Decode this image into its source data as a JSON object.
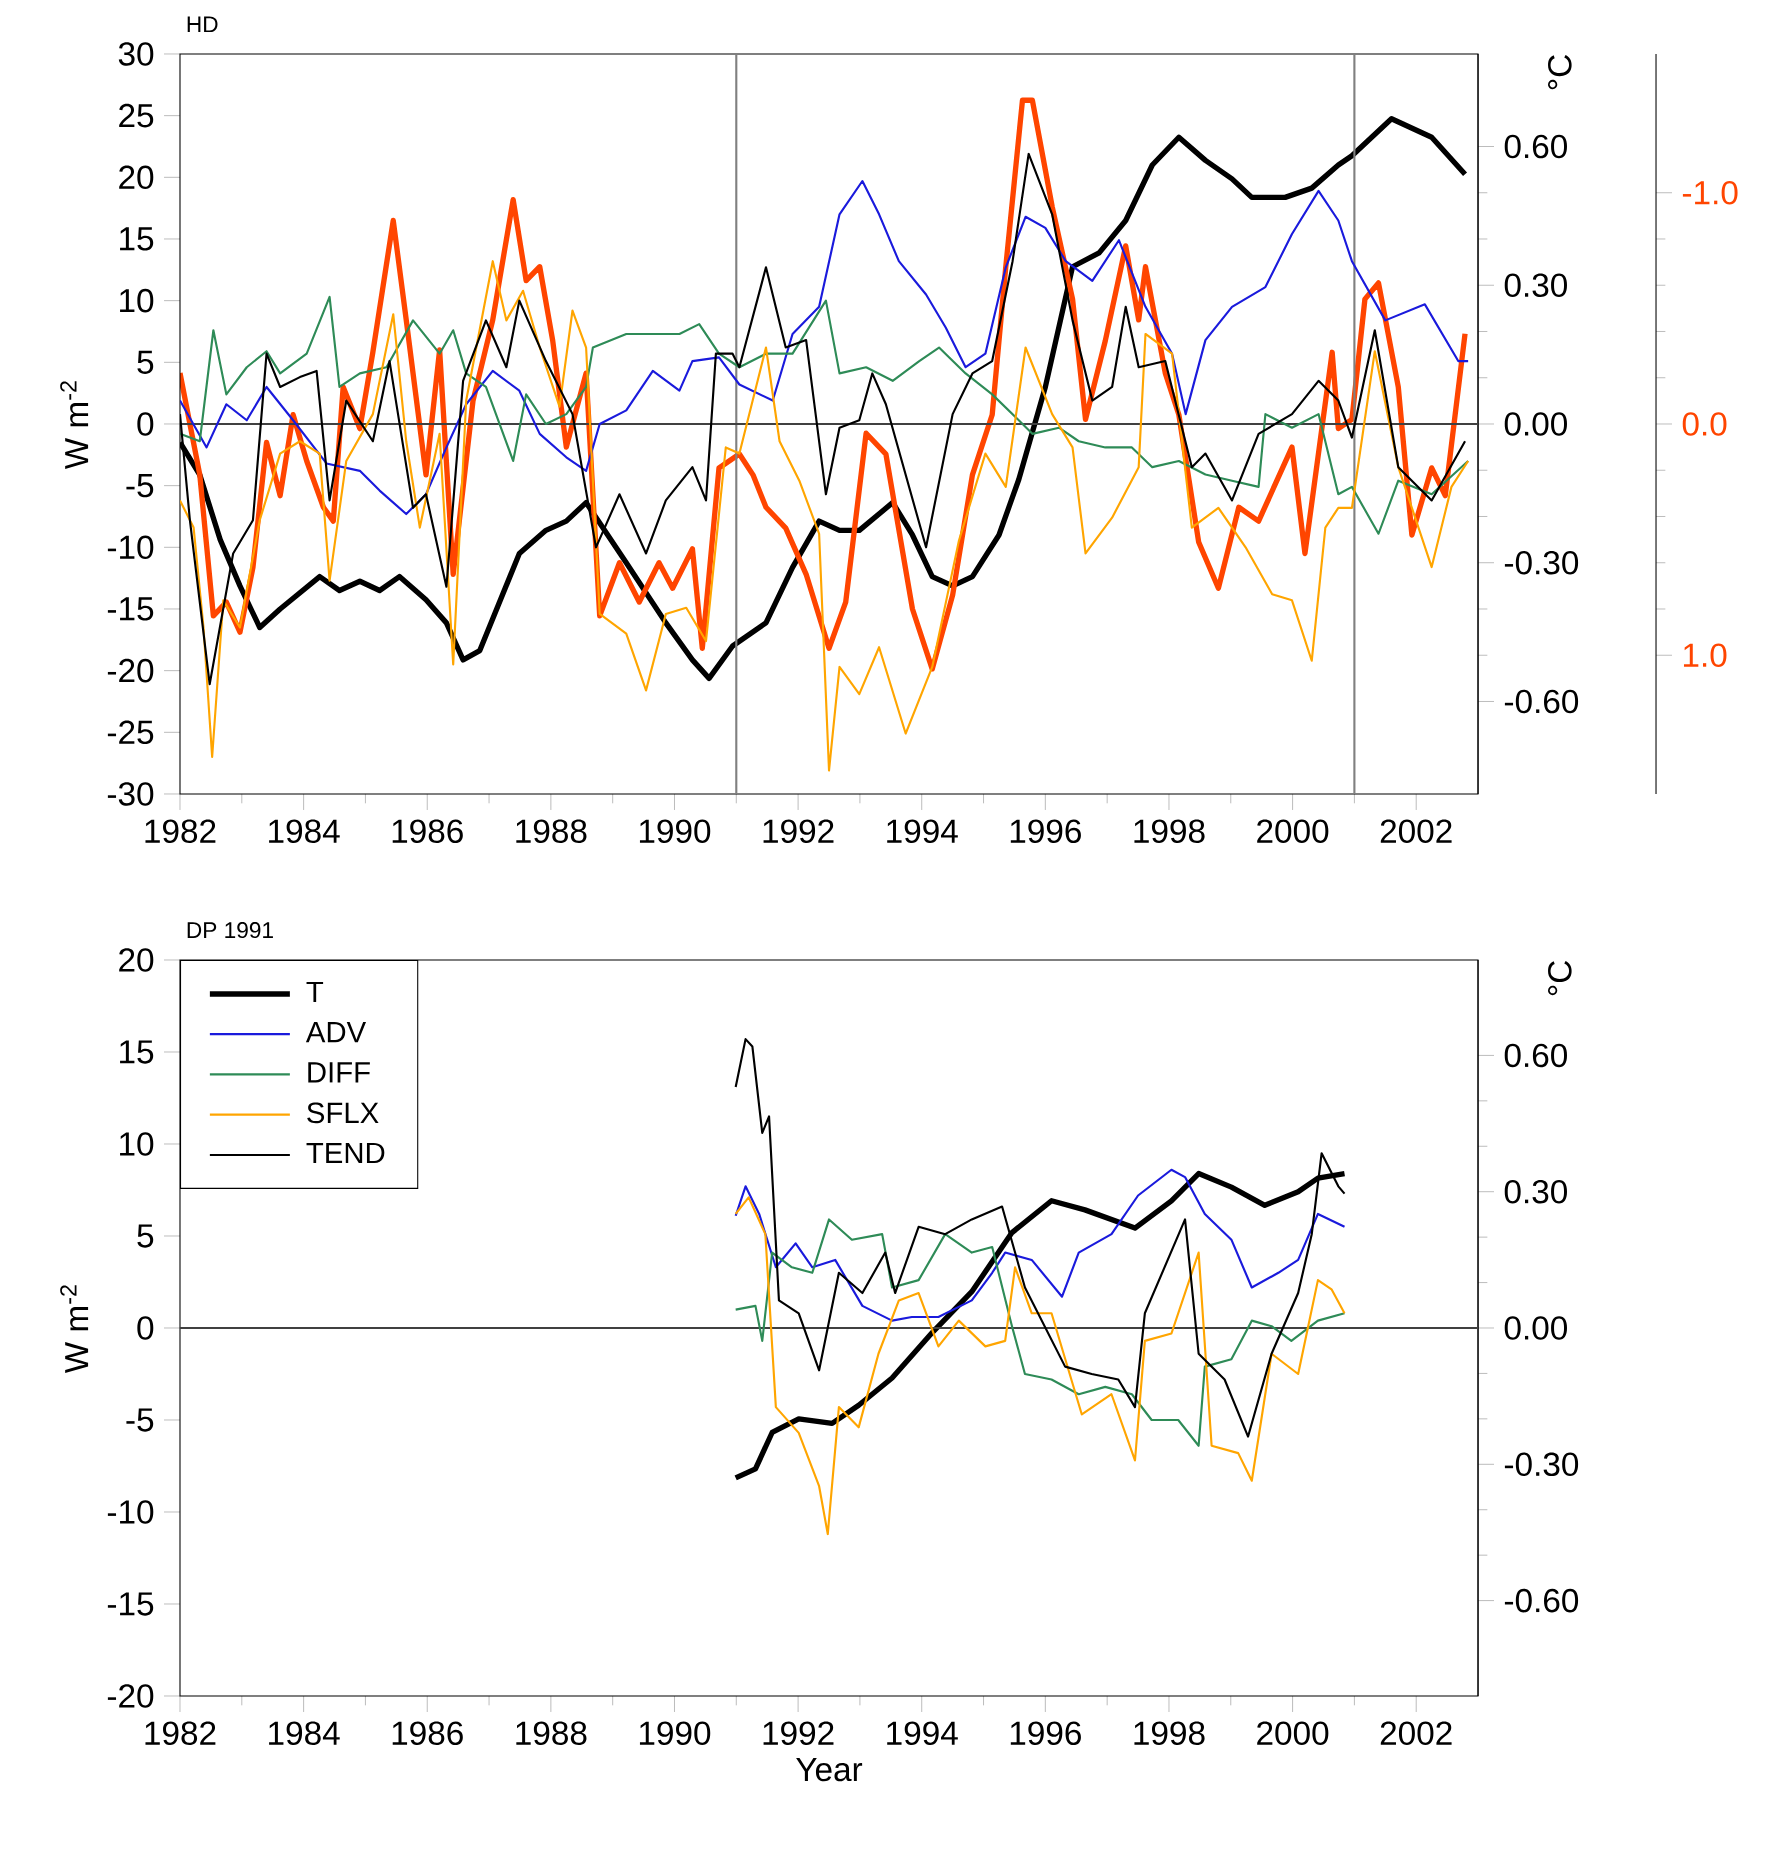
{
  "chart_data": [
    {
      "type": "line",
      "title": "HD",
      "ylabel": "W m$^{-2}$",
      "y2label": "°C",
      "legend": false,
      "xlim": [
        1982,
        2003
      ],
      "xticks": [
        1982,
        1984,
        1986,
        1988,
        1990,
        1992,
        1994,
        1996,
        1998,
        2000,
        2002
      ],
      "ylim": [
        -30,
        30
      ],
      "yticks": [
        -30,
        -25,
        -20,
        -15,
        -10,
        -5,
        0,
        5,
        10,
        15,
        20,
        25,
        30
      ],
      "y2lim": [
        -0.8,
        0.8
      ],
      "y2ticks": [
        {
          "value": -0.6,
          "label": "-0.60"
        },
        {
          "value": -0.3,
          "label": "-0.30"
        },
        {
          "value": 0,
          "label": "0.00"
        },
        {
          "value": 0.3,
          "label": "0.30"
        },
        {
          "value": 0.6,
          "label": "0.60"
        }
      ],
      "y3lim": [
        1.6,
        -1.6
      ],
      "y3ticks": [
        {
          "value": -1,
          "label": "-1.0"
        },
        {
          "value": 0,
          "label": "0.0"
        },
        {
          "value": 1,
          "label": "1.0"
        }
      ],
      "ref_lines": [
        {
          "axis": "x",
          "value": 1991,
          "color": "#808080"
        },
        {
          "axis": "x",
          "value": 2001,
          "color": "#808080"
        },
        {
          "axis": "y",
          "value": 0,
          "color": "#404040"
        }
      ],
      "series": [
        {
          "color": "#000000",
          "axis": "y2",
          "x": [
            1982.0,
            1982.32,
            1982.65,
            1982.97,
            1983.29,
            1983.62,
            1984.26,
            1984.58,
            1984.91,
            1985.23,
            1985.55,
            1985.98,
            1986.31,
            1986.58,
            1986.85,
            1987.49,
            1987.92,
            1988.25,
            1988.57,
            1989.22,
            1989.86,
            1990.29,
            1990.56,
            1990.94,
            1991.48,
            1991.91,
            1992.34,
            1992.67,
            1992.99,
            1993.53,
            1993.85,
            1994.17,
            1994.5,
            1994.82,
            1995.25,
            1995.57,
            1996.0,
            1996.44,
            1996.87,
            1997.3,
            1997.73,
            1998.16,
            1998.59,
            1999.02,
            1999.34,
            1999.88,
            2000.31,
            2000.74,
            2000.96,
            2001.6,
            2002.25,
            2002.79
          ],
          "values": [
            -0.04,
            -0.11,
            -0.25,
            -0.35,
            -0.44,
            -0.4,
            -0.33,
            -0.36,
            -0.34,
            -0.36,
            -0.33,
            -0.38,
            -0.43,
            -0.51,
            -0.49,
            -0.28,
            -0.23,
            -0.21,
            -0.17,
            -0.3,
            -0.43,
            -0.51,
            -0.55,
            -0.48,
            -0.43,
            -0.31,
            -0.21,
            -0.23,
            -0.23,
            -0.17,
            -0.24,
            -0.33,
            -0.35,
            -0.33,
            -0.24,
            -0.12,
            0.08,
            0.34,
            0.37,
            0.44,
            0.56,
            0.62,
            0.57,
            0.53,
            0.49,
            0.49,
            0.51,
            0.56,
            0.58,
            0.66,
            0.62,
            0.54
          ]
        },
        {
          "color": "#1a1adc",
          "x": [
            1982.0,
            1982.43,
            1982.75,
            1983.08,
            1983.4,
            1983.83,
            1984.37,
            1984.91,
            1985.23,
            1985.66,
            1985.98,
            1986.31,
            1986.63,
            1987.06,
            1987.49,
            1987.82,
            1988.25,
            1988.57,
            1988.79,
            1989.22,
            1989.65,
            1990.08,
            1990.29,
            1990.72,
            1991.05,
            1991.59,
            1991.91,
            1992.34,
            1992.67,
            1993.04,
            1993.31,
            1993.63,
            1994.07,
            1994.39,
            1994.71,
            1995.03,
            1995.36,
            1995.68,
            1996.0,
            1996.33,
            1996.76,
            1997.19,
            1997.62,
            1998.05,
            1998.27,
            1998.59,
            1999.02,
            1999.56,
            1999.99,
            2000.42,
            2000.74,
            2000.96,
            2001.5,
            2002.14,
            2002.68,
            2002.84
          ],
          "values": [
            1.9,
            -1.9,
            1.6,
            0.3,
            3.0,
            0.3,
            -3.2,
            -3.8,
            -5.4,
            -7.3,
            -5.7,
            -1.9,
            1.6,
            4.3,
            2.7,
            -0.8,
            -2.7,
            -3.8,
            0,
            1.1,
            4.3,
            2.7,
            5.1,
            5.4,
            3.2,
            1.9,
            7.3,
            9.5,
            17.0,
            19.7,
            17.0,
            13.2,
            10.5,
            7.8,
            4.6,
            5.7,
            12.7,
            16.8,
            15.9,
            13.2,
            11.6,
            14.9,
            9.5,
            5.7,
            0.8,
            6.8,
            9.5,
            11.1,
            15.4,
            18.9,
            16.5,
            13.2,
            8.4,
            9.7,
            5.1,
            5.1
          ]
        },
        {
          "color": "#2e8b57",
          "x": [
            1982.0,
            1982.32,
            1982.54,
            1982.75,
            1983.08,
            1983.4,
            1983.62,
            1984.05,
            1984.42,
            1984.58,
            1984.91,
            1985.34,
            1985.77,
            1986.2,
            1986.42,
            1986.63,
            1986.95,
            1987.39,
            1987.6,
            1987.92,
            1988.25,
            1988.57,
            1988.68,
            1989.22,
            1989.65,
            1990.08,
            1990.4,
            1990.72,
            1991.05,
            1991.48,
            1991.91,
            1992.45,
            1992.67,
            1993.1,
            1993.53,
            1993.96,
            1994.28,
            1994.71,
            1995.14,
            1995.57,
            1995.79,
            1996.22,
            1996.54,
            1996.97,
            1997.4,
            1997.73,
            1998.16,
            1998.59,
            1999.02,
            1999.45,
            1999.56,
            1999.99,
            2000.42,
            2000.74,
            2000.96,
            2001.39,
            2001.71,
            2002.25,
            2002.84
          ],
          "values": [
            -0.8,
            -1.4,
            7.6,
            2.4,
            4.6,
            5.9,
            4.1,
            5.7,
            10.3,
            3.0,
            4.1,
            4.6,
            8.4,
            5.7,
            7.6,
            4.1,
            3.0,
            -3.0,
            2.4,
            0,
            0.8,
            3.0,
            6.2,
            7.3,
            7.3,
            7.3,
            8.1,
            5.7,
            4.6,
            5.7,
            5.7,
            10.0,
            4.1,
            4.6,
            3.5,
            5.1,
            6.2,
            4.1,
            2.4,
            0.3,
            -0.8,
            -0.3,
            -1.4,
            -1.9,
            -1.9,
            -3.5,
            -3.0,
            -4.1,
            -4.6,
            -5.1,
            0.8,
            -0.3,
            0.8,
            -5.7,
            -5.1,
            -8.9,
            -4.6,
            -5.7,
            -3.0
          ]
        },
        {
          "color": "#ffa500",
          "x": [
            1982.0,
            1982.22,
            1982.38,
            1982.52,
            1982.7,
            1982.97,
            1983.29,
            1983.62,
            1983.94,
            1984.26,
            1984.42,
            1984.69,
            1985.12,
            1985.45,
            1985.66,
            1985.88,
            1986.2,
            1986.42,
            1986.63,
            1987.06,
            1987.28,
            1987.55,
            1987.82,
            1988.14,
            1988.35,
            1988.57,
            1988.79,
            1989.22,
            1989.54,
            1989.86,
            1990.19,
            1990.51,
            1990.83,
            1991.05,
            1991.48,
            1991.7,
            1992.02,
            1992.34,
            1992.5,
            1992.67,
            1992.99,
            1993.31,
            1993.74,
            1994.17,
            1994.6,
            1995.03,
            1995.36,
            1995.68,
            1996.11,
            1996.44,
            1996.65,
            1997.08,
            1997.51,
            1997.62,
            1998.05,
            1998.37,
            1998.8,
            1999.24,
            1999.67,
            1999.99,
            2000.31,
            2000.53,
            2000.74,
            2000.96,
            2001.33,
            2001.71,
            2002.25,
            2002.57,
            2002.84
          ],
          "values": [
            -6.2,
            -8.4,
            -16.5,
            -27.0,
            -14.3,
            -16.5,
            -7.8,
            -2.4,
            -1.4,
            -2.4,
            -12.7,
            -3.0,
            0.8,
            8.9,
            -1.4,
            -8.4,
            -0.8,
            -19.5,
            1.9,
            13.2,
            8.4,
            10.8,
            6.2,
            1.4,
            9.2,
            6.2,
            -15.4,
            -17.0,
            -21.6,
            -15.4,
            -14.9,
            -17.6,
            -1.9,
            -2.4,
            6.2,
            -1.4,
            -4.6,
            -8.9,
            -28.1,
            -19.7,
            -21.9,
            -18.1,
            -25.1,
            -19.7,
            -9.5,
            -2.4,
            -5.1,
            6.2,
            0.8,
            -1.9,
            -10.5,
            -7.6,
            -3.5,
            7.3,
            5.7,
            -8.4,
            -6.8,
            -10.0,
            -13.8,
            -14.3,
            -19.2,
            -8.4,
            -6.8,
            -6.8,
            5.9,
            -3.5,
            -11.6,
            -5.1,
            -3.0
          ]
        },
        {
          "color": "#000000",
          "x": [
            1982.0,
            1982.16,
            1982.48,
            1982.86,
            1983.18,
            1983.4,
            1983.62,
            1983.94,
            1984.21,
            1984.42,
            1984.69,
            1985.12,
            1985.39,
            1985.77,
            1985.98,
            1986.31,
            1986.58,
            1986.95,
            1987.28,
            1987.49,
            1987.92,
            1988.35,
            1988.73,
            1989.11,
            1989.54,
            1989.86,
            1990.29,
            1990.51,
            1990.67,
            1990.94,
            1991.05,
            1991.48,
            1991.8,
            1992.13,
            1992.45,
            1992.67,
            1992.99,
            1993.2,
            1993.42,
            1994.07,
            1994.5,
            1994.82,
            1995.14,
            1995.47,
            1995.73,
            1996.11,
            1996.44,
            1996.76,
            1997.08,
            1997.3,
            1997.51,
            1997.94,
            1998.37,
            1998.59,
            1999.02,
            1999.45,
            1999.99,
            2000.42,
            2000.74,
            2000.96,
            2001.33,
            2001.71,
            2002.25,
            2002.79
          ],
          "values": [
            0.8,
            -7.8,
            -21.1,
            -10.5,
            -7.8,
            5.7,
            3.0,
            3.8,
            4.3,
            -6.2,
            1.9,
            -1.4,
            5.1,
            -6.8,
            -5.7,
            -13.2,
            3.5,
            8.4,
            4.6,
            10.0,
            5.1,
            0.8,
            -10.0,
            -5.7,
            -10.5,
            -6.2,
            -3.5,
            -6.2,
            5.7,
            5.7,
            4.6,
            12.7,
            6.2,
            6.8,
            -5.7,
            -0.3,
            0.3,
            4.1,
            1.6,
            -10.0,
            0.8,
            4.1,
            5.1,
            13.2,
            21.9,
            17.0,
            8.4,
            1.9,
            3.0,
            9.5,
            4.6,
            5.1,
            -3.5,
            -2.4,
            -6.2,
            -0.8,
            0.8,
            3.5,
            1.9,
            -1.1,
            7.6,
            -3.5,
            -6.2,
            -1.4
          ]
        },
        {
          "color": "#ff4500",
          "axis": "y3",
          "x": [
            1982.0,
            1982.32,
            1982.54,
            1982.75,
            1982.97,
            1983.18,
            1983.4,
            1983.62,
            1983.83,
            1984.05,
            1984.32,
            1984.48,
            1984.64,
            1984.91,
            1985.12,
            1985.45,
            1985.66,
            1985.98,
            1986.2,
            1986.42,
            1986.74,
            1987.06,
            1987.39,
            1987.6,
            1987.82,
            1988.03,
            1988.25,
            1988.57,
            1988.79,
            1989.11,
            1989.43,
            1989.75,
            1989.97,
            1990.29,
            1990.45,
            1990.72,
            1991.05,
            1991.27,
            1991.48,
            1991.8,
            1992.13,
            1992.5,
            1992.77,
            1993.1,
            1993.42,
            1993.85,
            1994.17,
            1994.5,
            1994.82,
            1995.14,
            1995.36,
            1995.63,
            1995.79,
            1996.11,
            1996.44,
            1996.65,
            1996.97,
            1997.3,
            1997.51,
            1997.62,
            1997.94,
            1998.16,
            1998.48,
            1998.8,
            1999.13,
            1999.45,
            1999.99,
            2000.2,
            2000.64,
            2000.74,
            2000.96,
            2001.17,
            2001.39,
            2001.71,
            2001.93,
            2002.25,
            2002.47,
            2002.79
          ],
          "values": [
            -0.22,
            0.22,
            0.83,
            0.77,
            0.9,
            0.62,
            0.08,
            0.31,
            -0.04,
            0.16,
            0.36,
            0.42,
            -0.16,
            0.02,
            -0.31,
            -0.88,
            -0.45,
            0.22,
            -0.32,
            0.65,
            -0.1,
            -0.45,
            -0.97,
            -0.62,
            -0.68,
            -0.36,
            0.1,
            -0.22,
            0.83,
            0.6,
            0.77,
            0.6,
            0.71,
            0.54,
            0.97,
            0.19,
            0.13,
            0.22,
            0.36,
            0.45,
            0.65,
            0.97,
            0.77,
            0.04,
            0.13,
            0.8,
            1.06,
            0.74,
            0.22,
            -0.04,
            -0.68,
            -1.4,
            -1.4,
            -0.94,
            -0.54,
            -0.02,
            -0.36,
            -0.77,
            -0.45,
            -0.68,
            -0.22,
            -0.04,
            0.51,
            0.71,
            0.36,
            0.42,
            0.1,
            0.56,
            -0.31,
            0.02,
            -0.02,
            -0.54,
            -0.61,
            -0.16,
            0.48,
            0.19,
            0.31,
            -0.39
          ]
        }
      ]
    },
    {
      "type": "line",
      "title": "DP 1991",
      "xlabel": "Year",
      "ylabel": "W m$^{-2}$",
      "y2label": "°C",
      "legend": "top left",
      "xlim": [
        1982,
        2003
      ],
      "xticks": [
        1982,
        1984,
        1986,
        1988,
        1990,
        1992,
        1994,
        1996,
        1998,
        2000,
        2002
      ],
      "ylim": [
        -20,
        20
      ],
      "yticks": [
        -20,
        -15,
        -10,
        -5,
        0,
        5,
        10,
        15,
        20
      ],
      "y2lim": [
        -0.81,
        0.81
      ],
      "y2ticks": [
        {
          "value": -0.6,
          "label": "-0.60"
        },
        {
          "value": -0.3,
          "label": "-0.30"
        },
        {
          "value": 0,
          "label": "0.00"
        },
        {
          "value": 0.3,
          "label": "0.30"
        },
        {
          "value": 0.6,
          "label": "0.60"
        }
      ],
      "ref_lines": [
        {
          "axis": "y",
          "value": 0,
          "color": "#404040"
        }
      ],
      "series": [
        {
          "name": "T",
          "color": "#000000",
          "axis": "y2",
          "x": [
            1990.99,
            1991.31,
            1991.58,
            1992.01,
            1992.55,
            1992.98,
            1993.52,
            1994.17,
            1994.81,
            1995.46,
            1996.1,
            1996.64,
            1997.45,
            1998.04,
            1998.48,
            1999.01,
            1999.55,
            2000.09,
            2000.41,
            2000.84
          ],
          "values": [
            -0.33,
            -0.31,
            -0.23,
            -0.2,
            -0.21,
            -0.17,
            -0.11,
            -0.01,
            0.08,
            0.21,
            0.28,
            0.26,
            0.22,
            0.28,
            0.34,
            0.31,
            0.27,
            0.3,
            0.33,
            0.34
          ]
        },
        {
          "name": "ADV",
          "color": "#1a1adc",
          "x": [
            1990.99,
            1991.15,
            1991.37,
            1991.64,
            1991.96,
            1992.23,
            1992.6,
            1993.04,
            1993.52,
            1993.84,
            1994.27,
            1994.81,
            1995.14,
            1995.35,
            1995.78,
            1996.27,
            1996.54,
            1997.07,
            1997.5,
            1998.04,
            1998.26,
            1998.58,
            1999.01,
            1999.34,
            1999.77,
            2000.09,
            2000.41,
            2000.84
          ],
          "values": [
            6.1,
            7.7,
            6.2,
            3.3,
            4.6,
            3.3,
            3.7,
            1.2,
            0.4,
            0.6,
            0.6,
            1.5,
            3.0,
            4.1,
            3.7,
            1.7,
            4.1,
            5.1,
            7.2,
            8.6,
            8.2,
            6.2,
            4.8,
            2.2,
            3.0,
            3.7,
            6.2,
            5.5
          ]
        },
        {
          "name": "DIFF",
          "color": "#2e8b57",
          "x": [
            1990.99,
            1991.31,
            1991.42,
            1991.58,
            1991.9,
            1992.23,
            1992.5,
            1992.87,
            1993.36,
            1993.52,
            1993.95,
            1994.38,
            1994.81,
            1995.14,
            1995.46,
            1995.67,
            1996.1,
            1996.54,
            1996.97,
            1997.4,
            1997.72,
            1998.15,
            1998.48,
            1998.58,
            1999.01,
            1999.34,
            1999.66,
            1999.98,
            2000.41,
            2000.84
          ],
          "values": [
            1.0,
            1.2,
            -0.7,
            4.1,
            3.3,
            3.0,
            5.9,
            4.8,
            5.1,
            2.2,
            2.6,
            5.1,
            4.1,
            4.4,
            0.1,
            -2.5,
            -2.8,
            -3.6,
            -3.2,
            -3.6,
            -5.0,
            -5.0,
            -6.4,
            -2.1,
            -1.7,
            0.4,
            0.1,
            -0.7,
            0.4,
            0.8
          ]
        },
        {
          "name": "SFLX",
          "color": "#ffa500",
          "x": [
            1990.99,
            1991.2,
            1991.47,
            1991.64,
            1992.01,
            1992.34,
            1992.48,
            1992.66,
            1992.98,
            1993.3,
            1993.63,
            1993.95,
            1994.27,
            1994.6,
            1995.03,
            1995.35,
            1995.51,
            1995.78,
            1996.1,
            1996.59,
            1997.07,
            1997.45,
            1997.61,
            1998.04,
            1998.48,
            1998.69,
            1999.12,
            1999.34,
            1999.66,
            2000.09,
            2000.41,
            2000.63,
            2000.84
          ],
          "values": [
            6.2,
            7.1,
            5.1,
            -4.3,
            -5.7,
            -8.6,
            -11.2,
            -4.3,
            -5.4,
            -1.4,
            1.5,
            1.9,
            -1.0,
            0.4,
            -1.0,
            -0.7,
            3.3,
            0.8,
            0.8,
            -4.7,
            -3.6,
            -7.2,
            -0.7,
            -0.3,
            4.1,
            -6.4,
            -6.8,
            -8.3,
            -1.4,
            -2.5,
            2.6,
            2.1,
            0.8
          ]
        },
        {
          "name": "TEND",
          "color": "#000000",
          "x": [
            1990.99,
            1991.15,
            1991.26,
            1991.42,
            1991.53,
            1991.69,
            1992.01,
            1992.34,
            1992.66,
            1993.04,
            1993.41,
            1993.57,
            1993.95,
            1994.38,
            1994.81,
            1995.3,
            1995.67,
            1996.32,
            1996.75,
            1997.18,
            1997.45,
            1997.61,
            1998.26,
            1998.48,
            1998.9,
            1999.28,
            1999.66,
            2000.09,
            2000.31,
            2000.47,
            2000.74,
            2000.84
          ],
          "values": [
            13.1,
            15.7,
            15.3,
            10.6,
            11.5,
            1.5,
            0.8,
            -2.3,
            3.0,
            1.9,
            4.1,
            1.9,
            5.5,
            5.1,
            5.9,
            6.6,
            2.2,
            -2.1,
            -2.5,
            -2.8,
            -4.3,
            0.8,
            5.9,
            -1.4,
            -2.8,
            -5.9,
            -1.4,
            1.9,
            5.1,
            9.5,
            7.7,
            7.3
          ]
        }
      ]
    }
  ]
}
